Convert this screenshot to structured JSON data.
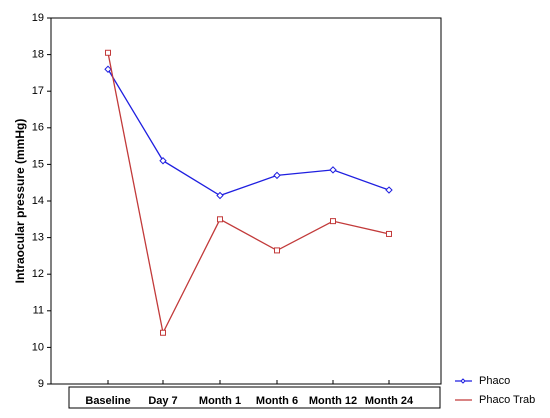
{
  "chart_data": {
    "type": "line",
    "title": "",
    "xlabel": "",
    "ylabel": "Intraocular pressure (mmHg)",
    "ylim": [
      9,
      19
    ],
    "yticks": [
      9,
      10,
      11,
      12,
      13,
      14,
      15,
      16,
      17,
      18,
      19
    ],
    "grid": false,
    "legend_position": "bottom-right",
    "categories": [
      "Baseline",
      "Day 7",
      "Month 1",
      "Month 6",
      "Month 12",
      "Month 24"
    ],
    "series": [
      {
        "name": "Phaco",
        "color": "#1f1fe0",
        "marker": "diamond",
        "values": [
          17.6,
          15.1,
          14.15,
          14.7,
          14.85,
          14.3
        ]
      },
      {
        "name": "Phaco Trab",
        "color": "#c23a3a",
        "marker": "square",
        "values": [
          18.05,
          10.4,
          13.5,
          12.65,
          13.45,
          13.1
        ]
      }
    ]
  }
}
